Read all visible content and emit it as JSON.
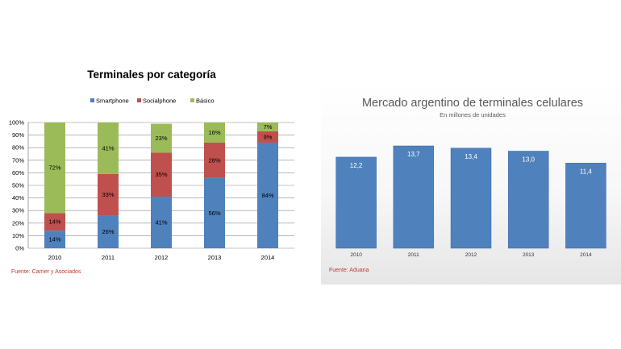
{
  "chart_data": [
    {
      "type": "bar",
      "stacked": true,
      "title": "Terminales por categoría",
      "categories": [
        "2010",
        "2011",
        "2012",
        "2013",
        "2014"
      ],
      "series": [
        {
          "name": "Smartphone",
          "values": [
            14,
            26,
            41,
            56,
            84
          ],
          "labels": [
            "14%",
            "26%",
            "41%",
            "56%",
            "84%"
          ],
          "color": "#4f81bd"
        },
        {
          "name": "Socialphone",
          "values": [
            14,
            33,
            35,
            28,
            9
          ],
          "labels": [
            "14%",
            "33%",
            "35%",
            "28%",
            "9%"
          ],
          "color": "#c0504d"
        },
        {
          "name": "Básico",
          "values": [
            72,
            41,
            23,
            16,
            7
          ],
          "labels": [
            "72%",
            "41%",
            "23%",
            "16%",
            "7%"
          ],
          "color": "#9bbb59"
        }
      ],
      "yticks": [
        "0%",
        "10%",
        "20%",
        "30%",
        "40%",
        "50%",
        "60%",
        "70%",
        "80%",
        "90%",
        "100%"
      ],
      "ylim": [
        0,
        100
      ],
      "grid": true,
      "legend": "top",
      "source": "Fuente: Carrier y Asociados"
    },
    {
      "type": "bar",
      "title": "Mercado argentino de terminales celulares",
      "subtitle": "En millones de unidades",
      "categories": [
        "2010",
        "2011",
        "2012",
        "2013",
        "2014"
      ],
      "values": [
        12.2,
        13.7,
        13.4,
        13.0,
        11.4
      ],
      "labels": [
        "12,2",
        "13,7",
        "13,4",
        "13,0",
        "11,4"
      ],
      "color": "#4f81bd",
      "source": "Fuente: Aduana"
    }
  ]
}
